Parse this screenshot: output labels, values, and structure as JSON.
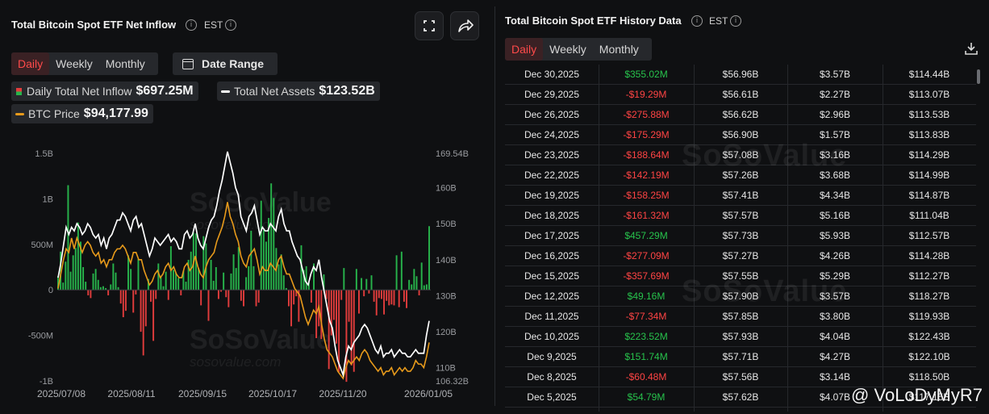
{
  "left_panel": {
    "title": "Total Bitcoin Spot ETF Net Inflow",
    "timezone": "EST",
    "tabs": [
      "Daily",
      "Weekly",
      "Monthly"
    ],
    "active_tab": "Daily",
    "date_range_label": "Date Range",
    "legend": {
      "net_inflow_label": "Daily Total Net Inflow",
      "net_inflow_value": "$697.25M",
      "net_assets_label": "Total Net Assets",
      "net_assets_value": "$123.52B",
      "btc_price_label": "BTC Price",
      "btc_price_value": "$94,177.99"
    },
    "watermark": "SoSoValue",
    "watermark_sub": "sosovalue.com"
  },
  "right_panel": {
    "title": "Total Bitcoin Spot ETF History Data",
    "timezone": "EST",
    "tabs": [
      "Daily",
      "Weekly",
      "Monthly"
    ],
    "active_tab": "Daily",
    "rows": [
      {
        "date": "Dec 30,2025",
        "net_inflow": "$355.02M",
        "sign": "pos",
        "value_traded": "$56.96B",
        "c3": "$3.57B",
        "net_assets": "$114.44B"
      },
      {
        "date": "Dec 29,2025",
        "net_inflow": "-$19.29M",
        "sign": "neg",
        "value_traded": "$56.61B",
        "c3": "$2.27B",
        "net_assets": "$113.07B"
      },
      {
        "date": "Dec 26,2025",
        "net_inflow": "-$275.88M",
        "sign": "neg",
        "value_traded": "$56.62B",
        "c3": "$2.96B",
        "net_assets": "$113.53B"
      },
      {
        "date": "Dec 24,2025",
        "net_inflow": "-$175.29M",
        "sign": "neg",
        "value_traded": "$56.90B",
        "c3": "$1.57B",
        "net_assets": "$113.83B"
      },
      {
        "date": "Dec 23,2025",
        "net_inflow": "-$188.64M",
        "sign": "neg",
        "value_traded": "$57.08B",
        "c3": "$3.16B",
        "net_assets": "$114.29B"
      },
      {
        "date": "Dec 22,2025",
        "net_inflow": "-$142.19M",
        "sign": "neg",
        "value_traded": "$57.26B",
        "c3": "$3.68B",
        "net_assets": "$114.99B"
      },
      {
        "date": "Dec 19,2025",
        "net_inflow": "-$158.25M",
        "sign": "neg",
        "value_traded": "$57.41B",
        "c3": "$4.34B",
        "net_assets": "$114.87B"
      },
      {
        "date": "Dec 18,2025",
        "net_inflow": "-$161.32M",
        "sign": "neg",
        "value_traded": "$57.57B",
        "c3": "$5.16B",
        "net_assets": "$111.04B"
      },
      {
        "date": "Dec 17,2025",
        "net_inflow": "$457.29M",
        "sign": "pos",
        "value_traded": "$57.73B",
        "c3": "$5.93B",
        "net_assets": "$112.57B"
      },
      {
        "date": "Dec 16,2025",
        "net_inflow": "-$277.09M",
        "sign": "neg",
        "value_traded": "$57.27B",
        "c3": "$4.26B",
        "net_assets": "$114.28B"
      },
      {
        "date": "Dec 15,2025",
        "net_inflow": "-$357.69M",
        "sign": "neg",
        "value_traded": "$57.55B",
        "c3": "$5.29B",
        "net_assets": "$112.27B"
      },
      {
        "date": "Dec 12,2025",
        "net_inflow": "$49.16M",
        "sign": "pos",
        "value_traded": "$57.90B",
        "c3": "$3.57B",
        "net_assets": "$118.27B"
      },
      {
        "date": "Dec 11,2025",
        "net_inflow": "-$77.34M",
        "sign": "neg",
        "value_traded": "$57.85B",
        "c3": "$3.80B",
        "net_assets": "$119.93B"
      },
      {
        "date": "Dec 10,2025",
        "net_inflow": "$223.52M",
        "sign": "pos",
        "value_traded": "$57.93B",
        "c3": "$4.04B",
        "net_assets": "$122.43B"
      },
      {
        "date": "Dec 9,2025",
        "net_inflow": "$151.74M",
        "sign": "pos",
        "value_traded": "$57.71B",
        "c3": "$4.27B",
        "net_assets": "$122.10B"
      },
      {
        "date": "Dec 8,2025",
        "net_inflow": "-$60.48M",
        "sign": "neg",
        "value_traded": "$57.56B",
        "c3": "$3.14B",
        "net_assets": "$118.50B"
      },
      {
        "date": "Dec 5,2025",
        "net_inflow": "$54.79M",
        "sign": "pos",
        "value_traded": "$57.62B",
        "c3": "$4.07B",
        "net_assets": "$117.15B"
      }
    ]
  },
  "overlay_handle": "@ VoLoDyMyR7",
  "colors": {
    "positive": "#27b34b",
    "negative": "#e13c3c",
    "total_assets_line": "#ffffff",
    "btc_line": "#e79a1b",
    "active_tab": "#ff4a4a"
  },
  "chart_data": {
    "type": "bar",
    "x_tick_labels": [
      "2025/07/08",
      "2025/08/11",
      "2025/09/15",
      "2025/10/17",
      "2025/11/20",
      "2026/01/05"
    ],
    "left_axis_ticks": [
      "1.5B",
      "1B",
      "500M",
      "0",
      "-500M",
      "-1B"
    ],
    "left_axis_values": [
      1500,
      1000,
      500,
      0,
      -500,
      -1000
    ],
    "right_axis_ticks": [
      "169.54B",
      "160B",
      "150B",
      "140B",
      "130B",
      "120B",
      "110B",
      "106.32B"
    ],
    "right_axis_values": [
      169.54,
      160,
      150,
      140,
      130,
      120,
      110,
      106.32
    ],
    "ylim_left": [
      -1000,
      1500
    ],
    "ylim_right": [
      106.32,
      169.54
    ],
    "series": [
      {
        "name": "Daily Total Net Inflow",
        "kind": "bar",
        "unit": "M",
        "values": [
          150,
          420,
          80,
          310,
          1150,
          200,
          380,
          460,
          740,
          530,
          250,
          90,
          -60,
          -90,
          180,
          230,
          110,
          30,
          40,
          20,
          -60,
          60,
          290,
          190,
          30,
          -150,
          -300,
          -230,
          380,
          230,
          -250,
          -50,
          340,
          -460,
          -720,
          -400,
          120,
          -130,
          -560,
          -100,
          290,
          150,
          40,
          200,
          -110,
          480,
          220,
          190,
          130,
          -60,
          210,
          90,
          330,
          420,
          630,
          620,
          240,
          -170,
          590,
          510,
          -340,
          330,
          100,
          250,
          -100,
          -20,
          190,
          -80,
          -190,
          180,
          390,
          240,
          470,
          -120,
          -180,
          140,
          260,
          650,
          260,
          -180,
          -140,
          980,
          660,
          530,
          790,
          1170,
          1010,
          460,
          280,
          390,
          160,
          20,
          -180,
          -400,
          -160,
          -70,
          -350,
          490,
          220,
          260,
          90,
          -140,
          290,
          -530,
          -400,
          -540,
          170,
          -100,
          -870,
          -500,
          -330,
          -590,
          -900,
          -110,
          240,
          -1010,
          -350,
          -830,
          -900,
          230,
          -260,
          130,
          -70,
          120,
          -40,
          160,
          -130,
          -280,
          -90,
          -100,
          -270,
          -120,
          -170,
          -160,
          -170,
          380,
          -190,
          420,
          -130,
          -200,
          110,
          60,
          230,
          150,
          -60,
          300,
          50,
          60,
          700
        ]
      },
      {
        "name": "Total Net Assets",
        "kind": "line",
        "unit": "B",
        "values": [
          135,
          139,
          144,
          149,
          147,
          149,
          148,
          150,
          149,
          147,
          148,
          150,
          149,
          147,
          146,
          147,
          144,
          146,
          143,
          146,
          147,
          149,
          151,
          151,
          153,
          152,
          150,
          148,
          151,
          152,
          149,
          150,
          147,
          144,
          141,
          143,
          146,
          145,
          144,
          145,
          146,
          147,
          145,
          146,
          145,
          143,
          143,
          147,
          148,
          146,
          147,
          150,
          146,
          144,
          143,
          146,
          149,
          151,
          152,
          155,
          159,
          162,
          166,
          170,
          167,
          164,
          160,
          158,
          152,
          150,
          148,
          152,
          153,
          155,
          151,
          147,
          149,
          148,
          148,
          150,
          149,
          148,
          152,
          154,
          150,
          148,
          148,
          145,
          143,
          141,
          140,
          137,
          134,
          133,
          136,
          138,
          137,
          140,
          135,
          131,
          127,
          123,
          121,
          116,
          112,
          110,
          108,
          113,
          116,
          115,
          117,
          118,
          119,
          121,
          122,
          121,
          119,
          117,
          115,
          114,
          116,
          113,
          114,
          114,
          115,
          113,
          114,
          115,
          114,
          114,
          113,
          113,
          114,
          115,
          114,
          114,
          114,
          119,
          123
        ]
      },
      {
        "name": "BTC Price",
        "kind": "line",
        "unit": "B",
        "values": [
          132,
          136,
          140,
          143,
          142,
          146,
          143,
          146,
          144,
          142,
          144,
          145,
          144,
          142,
          141,
          142,
          139,
          140,
          138,
          140,
          140,
          142,
          143,
          143,
          144,
          143,
          141,
          139,
          142,
          142,
          140,
          140,
          137,
          135,
          133,
          134,
          136,
          137,
          135,
          136,
          138,
          139,
          137,
          138,
          136,
          135,
          135,
          138,
          139,
          137,
          138,
          141,
          138,
          136,
          135,
          138,
          140,
          141,
          142,
          145,
          147,
          149,
          152,
          156,
          152,
          150,
          147,
          145,
          141,
          139,
          138,
          141,
          142,
          143,
          140,
          136,
          138,
          137,
          137,
          139,
          138,
          137,
          140,
          141,
          138,
          136,
          136,
          134,
          132,
          131,
          130,
          127,
          124,
          122,
          124,
          126,
          125,
          127,
          122,
          118,
          115,
          114,
          113,
          111,
          109,
          108,
          107,
          110,
          112,
          111,
          112,
          113,
          112,
          114,
          115,
          114,
          112,
          111,
          110,
          109,
          110,
          108,
          109,
          109,
          110,
          108,
          109,
          110,
          109,
          110,
          109,
          109,
          110,
          112,
          111,
          111,
          110,
          113,
          117
        ]
      }
    ],
    "grid": false,
    "legend_placement": "top"
  }
}
